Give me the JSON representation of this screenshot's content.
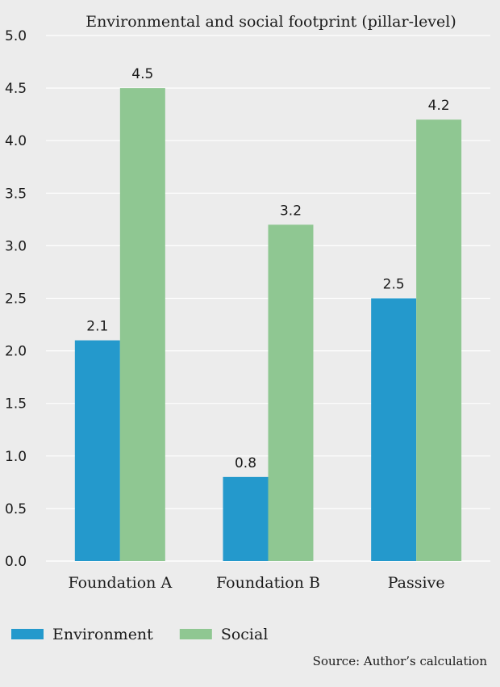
{
  "chart_data": {
    "type": "bar",
    "title": "Environmental and social footprint (pillar-level)",
    "categories": [
      "Foundation A",
      "Foundation B",
      "Passive"
    ],
    "series": [
      {
        "name": "Environment",
        "values": [
          2.1,
          0.8,
          2.5
        ],
        "color": "#2499cc"
      },
      {
        "name": "Social",
        "values": [
          4.5,
          3.2,
          4.2
        ],
        "color": "#8fc792"
      }
    ],
    "ylim": [
      0,
      5
    ],
    "yticks": [
      "0.0",
      "0.5",
      "1.0",
      "1.5",
      "2.0",
      "2.5",
      "3.0",
      "3.5",
      "4.0",
      "4.5",
      "5.0"
    ],
    "grid": true,
    "legend_position": "bottom-left"
  },
  "source": "Source: Author’s calculation"
}
